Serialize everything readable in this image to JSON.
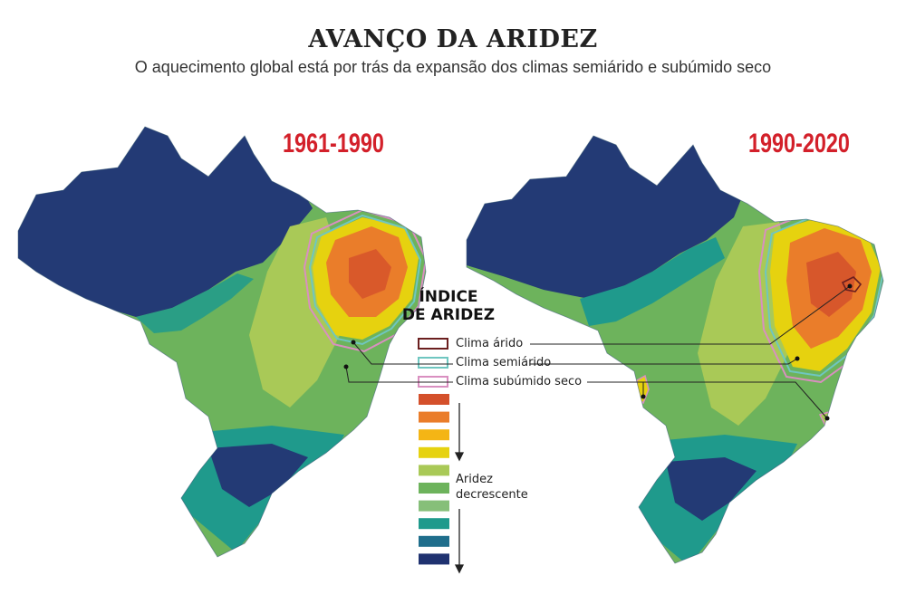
{
  "title": "AVANÇO DA ARIDEZ",
  "subtitle": "O aquecimento global está por trás da expansão dos climas semiárido e subúmido seco",
  "maps": [
    {
      "period": "1961-1990"
    },
    {
      "period": "1990-2020"
    }
  ],
  "legend": {
    "title_line1": "ÍNDICE",
    "title_line2": "DE ARIDEZ",
    "outlines": [
      {
        "label": "Clima árido",
        "color": "#6b1f1f"
      },
      {
        "label": "Clima semiárido",
        "color": "#6fc6c0"
      },
      {
        "label": "Clima subúmido seco",
        "color": "#d98fc0"
      }
    ],
    "scale_colors": [
      "#d4502b",
      "#ea7d2a",
      "#f4b515",
      "#e6d20f",
      "#a9c957",
      "#6db35c",
      "#86bf79",
      "#1f9a8c",
      "#1f6e8c",
      "#1f3270"
    ],
    "scale_label_line1": "Aridez",
    "scale_label_line2": "decrescente"
  },
  "colors": {
    "period_text": "#d3202a",
    "deep_blue": "#233a75",
    "teal": "#1f9a8c",
    "green": "#6db35c"
  }
}
